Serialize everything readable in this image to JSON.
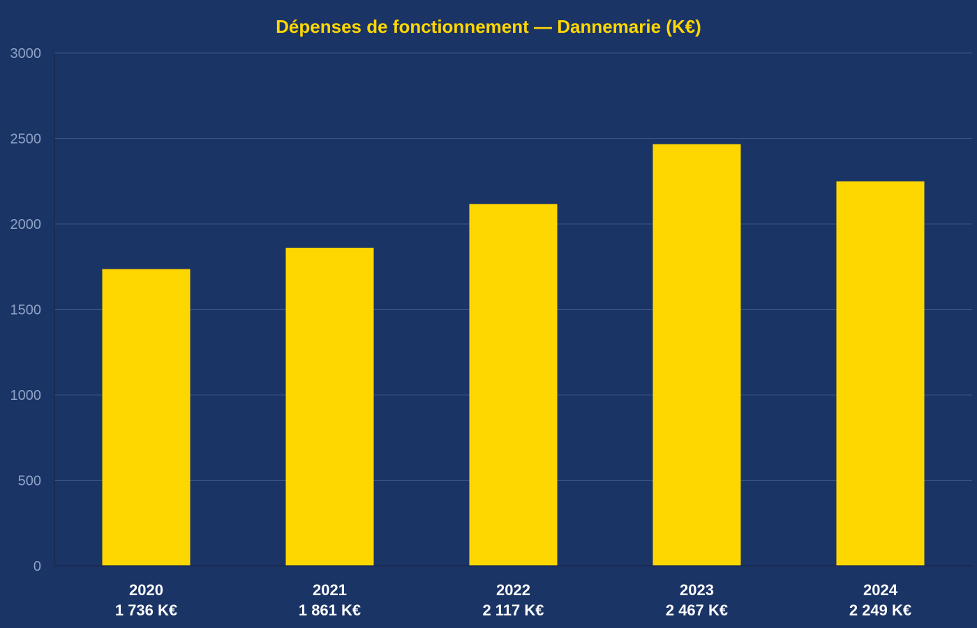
{
  "colors": {
    "background": "#1b3466",
    "bar": "#ffd700",
    "title": "#ffd700",
    "grid": "#3a5384",
    "axis": "#1a2a4e",
    "tick_text": "#8fa3c6",
    "label_text": "#ffffff"
  },
  "chart_data": {
    "type": "bar",
    "title": "Dépenses de fonctionnement — Dannemarie (K€)",
    "xlabel": "",
    "ylabel": "",
    "categories": [
      "2020",
      "2021",
      "2022",
      "2023",
      "2024"
    ],
    "values": [
      1736,
      1861,
      2117,
      2467,
      2249
    ],
    "value_labels": [
      "1 736 K€",
      "1 861 K€",
      "2 117 K€",
      "2 467 K€",
      "2 249 K€"
    ],
    "ylim": [
      0,
      3000
    ],
    "yticks": [
      0,
      500,
      1000,
      1500,
      2000,
      2500,
      3000
    ],
    "grid": true,
    "legend": "none"
  }
}
